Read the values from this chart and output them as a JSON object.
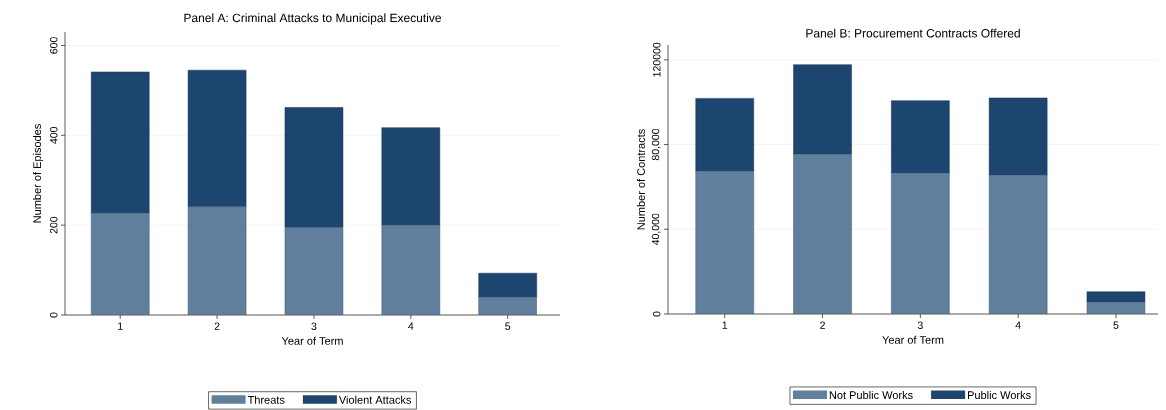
{
  "chart_data": [
    {
      "type": "bar",
      "title": "Panel A: Criminal Attacks to Municipal Executive",
      "xlabel": "Year of Term",
      "ylabel": "Number of Episodes",
      "categories": [
        "1",
        "2",
        "3",
        "4",
        "5"
      ],
      "stacked": true,
      "ylim": [
        0,
        630
      ],
      "yticks": [
        0,
        200,
        400,
        600
      ],
      "grid": "y",
      "legend": "bottom",
      "series": [
        {
          "name": "Threats",
          "color": "#5f7f9c",
          "values": [
            227,
            241,
            195,
            200,
            40
          ]
        },
        {
          "name": "Violent Attacks",
          "color": "#1c466f",
          "values": [
            314,
            304,
            267,
            217,
            53
          ]
        }
      ]
    },
    {
      "type": "bar",
      "title": "Panel B: Procurement Contracts Offered",
      "xlabel": "Year of Term",
      "ylabel": "Number of Contracts",
      "categories": [
        "1",
        "2",
        "3",
        "4",
        "5"
      ],
      "stacked": true,
      "ylim": [
        0,
        127000
      ],
      "yticks": [
        0,
        {
          "value": 40000,
          "label": "40,000"
        },
        {
          "value": 80000,
          "label": "80,000"
        },
        120000
      ],
      "grid": "y",
      "legend": "bottom",
      "series": [
        {
          "name": "Not Public Works",
          "color": "#5f7f9c",
          "values": [
            67500,
            75400,
            66600,
            65500,
            5600
          ]
        },
        {
          "name": "Public Works",
          "color": "#1c466f",
          "values": [
            34300,
            42300,
            34100,
            36500,
            4900
          ]
        }
      ]
    }
  ]
}
